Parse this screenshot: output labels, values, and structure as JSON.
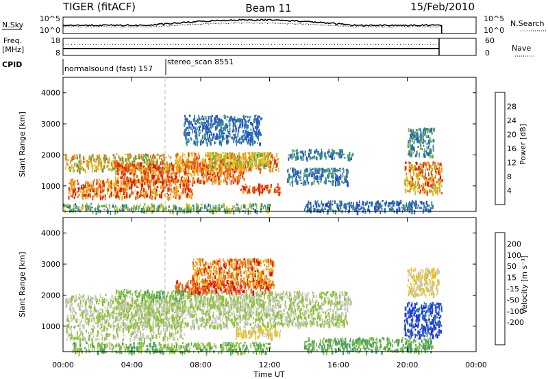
{
  "header": {
    "radar": "TIGER (fitACF)",
    "beam": "Beam 11",
    "date": "15/Feb/2010"
  },
  "noise_panel": {
    "left_label": "N.Sky",
    "right_label": "N.Search",
    "left_ticks": [
      "10^5",
      "10^0"
    ],
    "right_ticks": [
      "10^5",
      "10^0"
    ]
  },
  "freq_panel": {
    "left_label_1": "Freq.",
    "left_label_2": "[MHz]",
    "right_label": "Nave",
    "left_ticks": [
      "18",
      "8"
    ],
    "right_ticks": [
      "60",
      "0"
    ]
  },
  "cpid": {
    "label": "CPID",
    "modes": [
      {
        "name": "normalsound (fast) 157",
        "start_hour": 0
      },
      {
        "name": "stereo_scan 8551",
        "start_hour": 6
      }
    ]
  },
  "chart_data": [
    {
      "type": "heatmap",
      "name": "power",
      "ylabel": "Slant Range [km]",
      "ylim": [
        180,
        4500
      ],
      "y_ticks": [
        1000,
        2000,
        3000,
        4000
      ],
      "colorbar": {
        "label": "Power [dB]",
        "ticks": [
          "4",
          "8",
          "12",
          "16",
          "20",
          "24",
          "28"
        ],
        "colors": [
          "#1b2ff0",
          "#2b56c8",
          "#2f7e9a",
          "#4aa364",
          "#8fc23a",
          "#e8c11a",
          "#f29a10",
          "#f06a0c",
          "#e8320e",
          "#e00f0f"
        ],
        "range": [
          0,
          32
        ]
      },
      "regions": [
        {
          "t0": 0.1,
          "t1": 6.2,
          "r0": 1500,
          "r1": 2050,
          "v0": 10,
          "v1": 26
        },
        {
          "t0": 0.3,
          "t1": 7.5,
          "r0": 650,
          "r1": 1250,
          "v0": 16,
          "v1": 32
        },
        {
          "t0": 3.0,
          "t1": 10.5,
          "r0": 1150,
          "r1": 1800,
          "v0": 18,
          "v1": 32
        },
        {
          "t0": 6.5,
          "t1": 12.5,
          "r0": 1500,
          "r1": 2100,
          "v0": 16,
          "v1": 28
        },
        {
          "t0": 10.3,
          "t1": 12.6,
          "r0": 800,
          "r1": 1100,
          "v0": 22,
          "v1": 30
        },
        {
          "t0": 8.5,
          "t1": 12.0,
          "r0": 1650,
          "r1": 2100,
          "v0": 12,
          "v1": 20
        },
        {
          "t0": 13.0,
          "t1": 16.5,
          "r0": 1100,
          "r1": 1600,
          "v0": 3,
          "v1": 12
        },
        {
          "t0": 13.0,
          "t1": 16.8,
          "r0": 1900,
          "r1": 2200,
          "v0": 4,
          "v1": 12
        },
        {
          "t0": 7.0,
          "t1": 11.5,
          "r0": 2400,
          "r1": 3300,
          "v0": 3,
          "v1": 10
        },
        {
          "t0": 19.8,
          "t1": 22.0,
          "r0": 800,
          "r1": 1800,
          "v0": 14,
          "v1": 30
        },
        {
          "t0": 14.0,
          "t1": 21.5,
          "r0": 200,
          "r1": 550,
          "v0": 3,
          "v1": 10
        },
        {
          "t0": 0.0,
          "t1": 12.0,
          "r0": 200,
          "r1": 450,
          "v0": 6,
          "v1": 18
        },
        {
          "t0": 20.0,
          "t1": 21.5,
          "r0": 2000,
          "r1": 2900,
          "v0": 4,
          "v1": 14
        }
      ]
    },
    {
      "type": "heatmap",
      "name": "velocity",
      "ylabel": "Slant Range [km]",
      "ylim": [
        180,
        4500
      ],
      "y_ticks": [
        1000,
        2000,
        3000,
        4000
      ],
      "colorbar": {
        "label": "Velocity [m s⁻¹]",
        "ticks": [
          "200",
          "100",
          "50",
          "15",
          "-15",
          "-50",
          "-100",
          "-200"
        ],
        "colors": [
          "#1b2ff0",
          "#2b56c8",
          "#2f7e9a",
          "#4aa364",
          "#8fc23a",
          "#c8c8c0",
          "#e8c11a",
          "#f29a10",
          "#f06a0c",
          "#e00f0f"
        ],
        "range": [
          -250,
          250
        ]
      },
      "regions": [
        {
          "t0": 0.1,
          "t1": 7.0,
          "r0": 600,
          "r1": 2050,
          "v0": -12,
          "v1": 12
        },
        {
          "t0": 3.0,
          "t1": 12.0,
          "r0": 1000,
          "r1": 1850,
          "v0": -12,
          "v1": 12
        },
        {
          "t0": 7.0,
          "t1": 16.7,
          "r0": 1650,
          "r1": 2150,
          "v0": -12,
          "v1": 12
        },
        {
          "t0": 12.0,
          "t1": 16.5,
          "r0": 1050,
          "r1": 1600,
          "v0": -12,
          "v1": 12
        },
        {
          "t0": 10.0,
          "t1": 12.6,
          "r0": 650,
          "r1": 1000,
          "v0": 30,
          "v1": 90
        },
        {
          "t0": 6.5,
          "t1": 12.0,
          "r0": 2100,
          "r1": 2500,
          "v0": 150,
          "v1": 250
        },
        {
          "t0": 7.5,
          "t1": 12.2,
          "r0": 2300,
          "r1": 3200,
          "v0": 60,
          "v1": 230
        },
        {
          "t0": 0.5,
          "t1": 12.0,
          "r0": 180,
          "r1": 500,
          "v0": -70,
          "v1": -20
        },
        {
          "t0": 14.0,
          "t1": 21.5,
          "r0": 200,
          "r1": 650,
          "v0": -90,
          "v1": -30
        },
        {
          "t0": 19.8,
          "t1": 22.0,
          "r0": 700,
          "r1": 1800,
          "v0": -250,
          "v1": -130
        },
        {
          "t0": 20.0,
          "t1": 21.8,
          "r0": 2000,
          "r1": 2900,
          "v0": 20,
          "v1": 80
        },
        {
          "t0": 3.0,
          "t1": 7.0,
          "r0": 1900,
          "r1": 2200,
          "v0": -80,
          "v1": -20
        }
      ]
    }
  ],
  "time_axis": {
    "label": "Time UT",
    "range_hours": [
      0,
      24
    ],
    "ticks": [
      "00:00",
      "04:00",
      "08:00",
      "12:00",
      "16:00",
      "20:00",
      "00:00"
    ],
    "data_end_hour": 22
  }
}
